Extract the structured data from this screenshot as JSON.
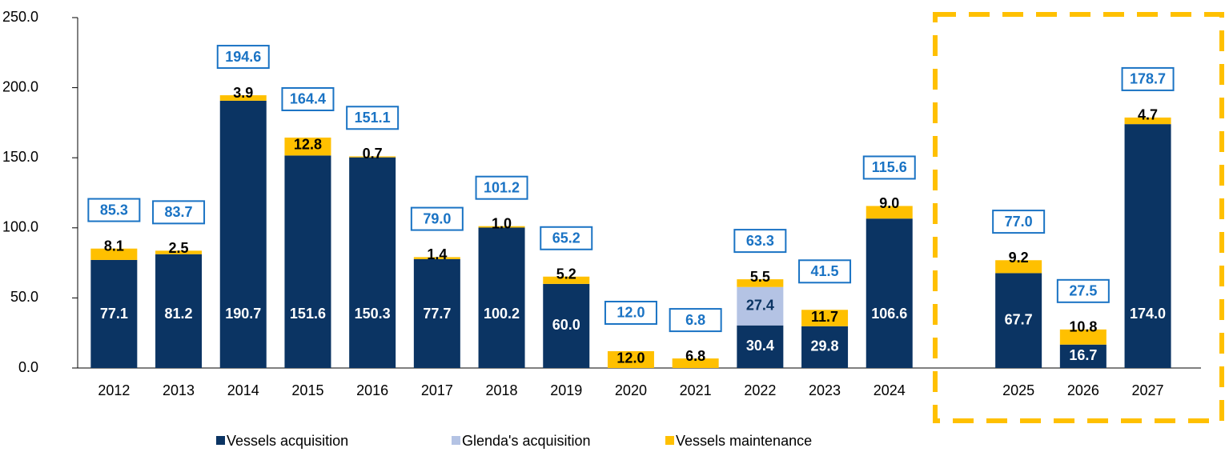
{
  "chart_data": {
    "type": "stacked-bar",
    "categories": [
      "2012",
      "2013",
      "2014",
      "2015",
      "2016",
      "2017",
      "2018",
      "2019",
      "2020",
      "2021",
      "2022",
      "2023",
      "2024",
      null,
      "2025",
      "2026",
      "2027"
    ],
    "series": [
      {
        "name": "Vessels acquisition",
        "color": "#0b3463",
        "label_color": "#ffffff",
        "values": [
          77.1,
          81.2,
          190.7,
          151.6,
          150.3,
          77.7,
          100.2,
          60.0,
          0,
          0,
          30.4,
          29.8,
          106.6,
          null,
          67.7,
          16.7,
          174.0
        ],
        "value_labels": [
          "77.1",
          "81.2",
          "190.7",
          "151.6",
          "150.3",
          "77.7",
          "100.2",
          "60.0",
          null,
          null,
          "30.4",
          "29.8",
          "106.6",
          null,
          "67.7",
          "16.7",
          "174.0"
        ]
      },
      {
        "name": "Glenda's acquisition",
        "color": "#b4c3e4",
        "label_color": "#0b3463",
        "values": [
          null,
          null,
          null,
          null,
          null,
          null,
          null,
          null,
          null,
          null,
          27.4,
          null,
          null,
          null,
          null,
          null,
          null
        ],
        "value_labels": [
          null,
          null,
          null,
          null,
          null,
          null,
          null,
          null,
          null,
          null,
          "27.4",
          null,
          null,
          null,
          null,
          null,
          null
        ]
      },
      {
        "name": "Vessels maintenance",
        "color": "#ffc000",
        "label_color": "#000000",
        "values": [
          8.1,
          2.5,
          3.9,
          12.8,
          0.7,
          1.4,
          1.0,
          5.2,
          12.0,
          6.8,
          5.5,
          11.7,
          9.0,
          null,
          9.2,
          10.8,
          4.7
        ],
        "value_labels": [
          "8.1",
          "2.5",
          "3.9",
          "12.8",
          "0.7",
          "1.4",
          "1.0",
          "5.2",
          "12.0",
          "6.8",
          "5.5",
          "11.7",
          "9.0",
          null,
          "9.2",
          "10.8",
          "4.7"
        ]
      }
    ],
    "totals": [
      85.3,
      83.7,
      194.6,
      164.4,
      151.1,
      79.0,
      101.2,
      65.2,
      12.0,
      6.8,
      63.3,
      41.5,
      115.6,
      null,
      77.0,
      27.5,
      178.7
    ],
    "total_labels": [
      "85.3",
      "83.7",
      "194.6",
      "164.4",
      "151.1",
      "79.0",
      "101.2",
      "65.2",
      "12.0",
      "6.8",
      "63.3",
      "41.5",
      "115.6",
      null,
      "77.0",
      "27.5",
      "178.7"
    ],
    "ylim": [
      0,
      250
    ],
    "yticks": [
      {
        "value": 0,
        "label": "0.0"
      },
      {
        "value": 50,
        "label": "50.0"
      },
      {
        "value": 100,
        "label": "100.0"
      },
      {
        "value": 150,
        "label": "150.0"
      },
      {
        "value": 200,
        "label": "200.0"
      },
      {
        "value": 250,
        "label": "250.0"
      }
    ],
    "legend": "bottom"
  }
}
